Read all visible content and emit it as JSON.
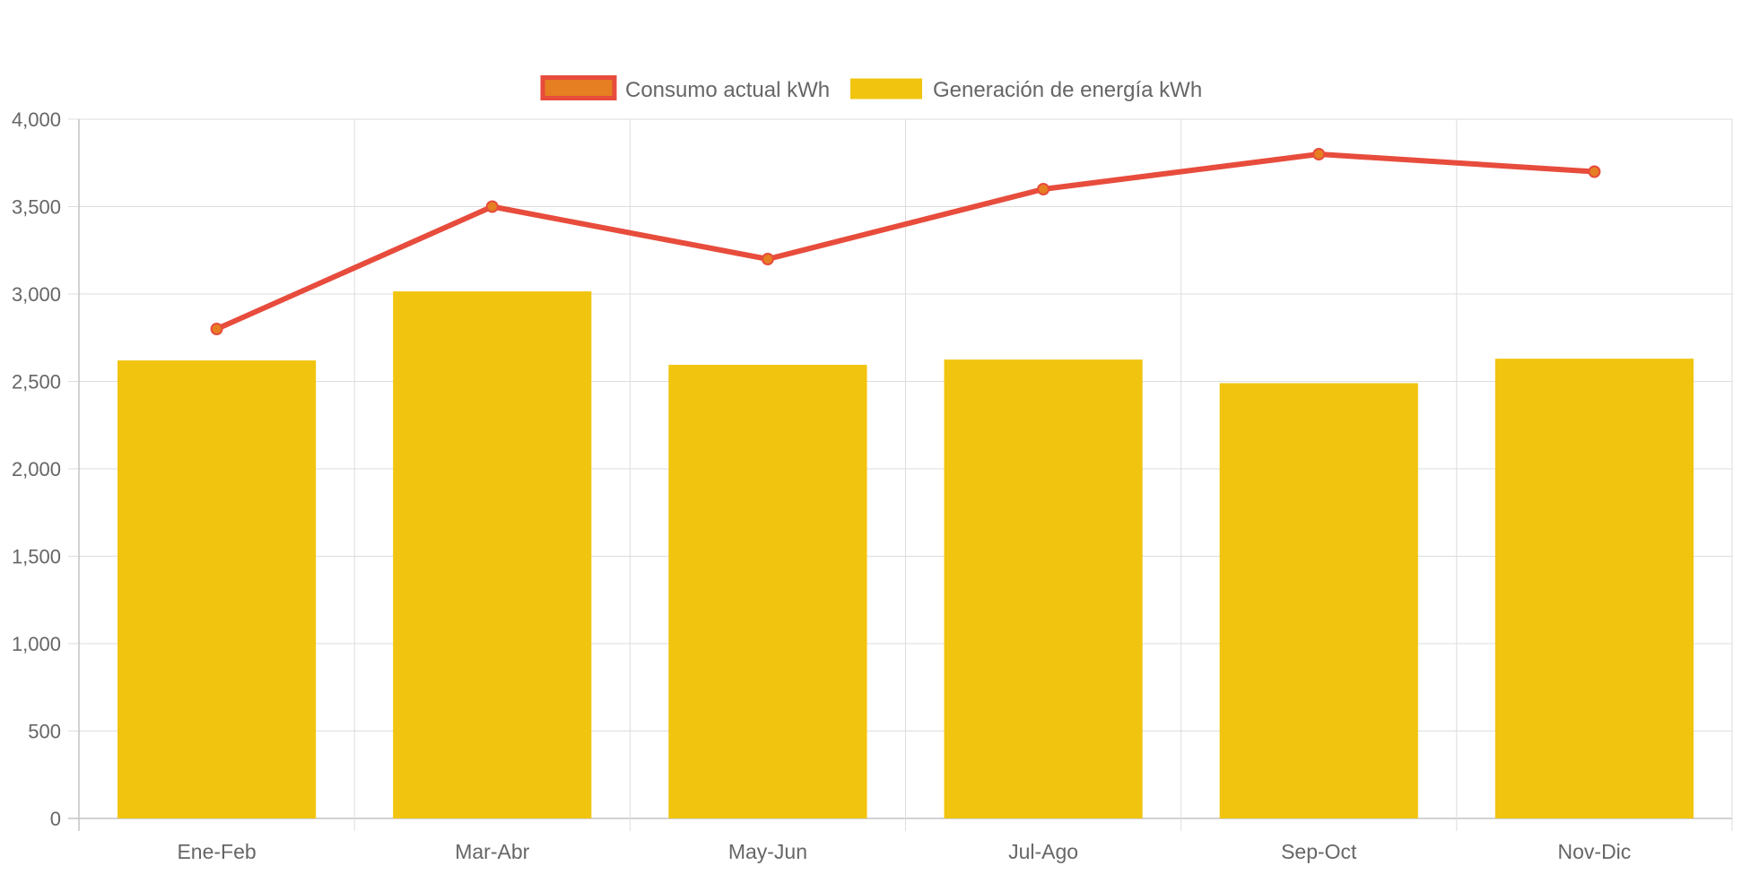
{
  "chart_data": {
    "type": "bar",
    "title": "",
    "xlabel": "",
    "ylabel": "",
    "categories": [
      "Ene-Feb",
      "Mar-Abr",
      "May-Jun",
      "Jul-Ago",
      "Sep-Oct",
      "Nov-Dic"
    ],
    "ylim": [
      0,
      4000
    ],
    "yticks": [
      0,
      500,
      1000,
      1500,
      2000,
      2500,
      3000,
      3500,
      4000
    ],
    "ytick_labels": [
      "0",
      "500",
      "1,000",
      "1,500",
      "2,000",
      "2,500",
      "3,000",
      "3,500",
      "4,000"
    ],
    "grid": true,
    "legend_position": "top-center",
    "series": [
      {
        "name": "Consumo actual kWh",
        "type": "line",
        "values": [
          2800,
          3500,
          3200,
          3600,
          3800,
          3700
        ],
        "line_color": "#e74c3c",
        "point_color": "#e67e22"
      },
      {
        "name": "Generación de energía kWh",
        "type": "bar",
        "values": [
          2620,
          3015,
          2595,
          2625,
          2490,
          2630
        ],
        "color": "#f1c40f"
      }
    ]
  }
}
